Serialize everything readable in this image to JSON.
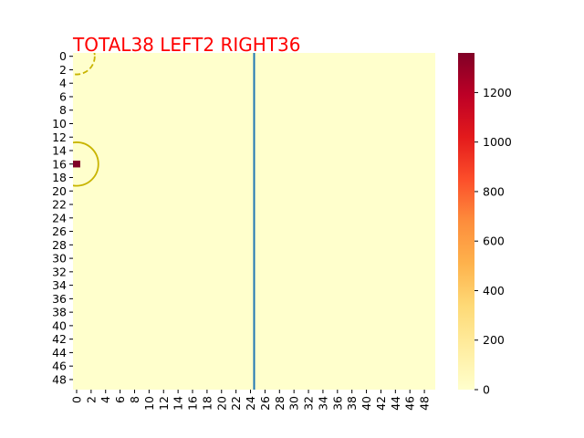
{
  "chart_data": {
    "type": "heatmap",
    "title": "TOTAL38  LEFT2 RIGHT36",
    "title_color": "#ff0000",
    "grid_size": [
      50,
      50
    ],
    "x_ticks": [
      "0",
      "2",
      "4",
      "6",
      "8",
      "10",
      "12",
      "14",
      "16",
      "18",
      "20",
      "22",
      "24",
      "26",
      "28",
      "30",
      "32",
      "34",
      "36",
      "38",
      "40",
      "42",
      "44",
      "46",
      "48"
    ],
    "y_ticks": [
      "0",
      "2",
      "4",
      "6",
      "8",
      "10",
      "12",
      "14",
      "16",
      "18",
      "20",
      "22",
      "24",
      "26",
      "28",
      "30",
      "32",
      "34",
      "36",
      "38",
      "40",
      "42",
      "44",
      "46",
      "48"
    ],
    "background_value": 0,
    "hot_cells": [
      {
        "row": 16,
        "col": 0,
        "value": 1360
      }
    ],
    "vertical_line": {
      "x": 25,
      "color": "#1f77b4"
    },
    "circles": [
      {
        "center_row": 0,
        "center_col": 0,
        "radius": 2.5,
        "style": "dashed",
        "color": "#c8b400"
      },
      {
        "center_row": 16,
        "center_col": 0,
        "radius": 3,
        "style": "solid",
        "color": "#c8b400"
      }
    ],
    "colorbar": {
      "ticks": [
        "0",
        "200",
        "400",
        "600",
        "800",
        "1000",
        "1200"
      ],
      "range": [
        0,
        1360
      ],
      "colormap": [
        "#ffffcc",
        "#ffeda0",
        "#fed976",
        "#feb24c",
        "#fd8d3c",
        "#fc4e2a",
        "#e31a1c",
        "#bd0026",
        "#800026"
      ]
    }
  }
}
